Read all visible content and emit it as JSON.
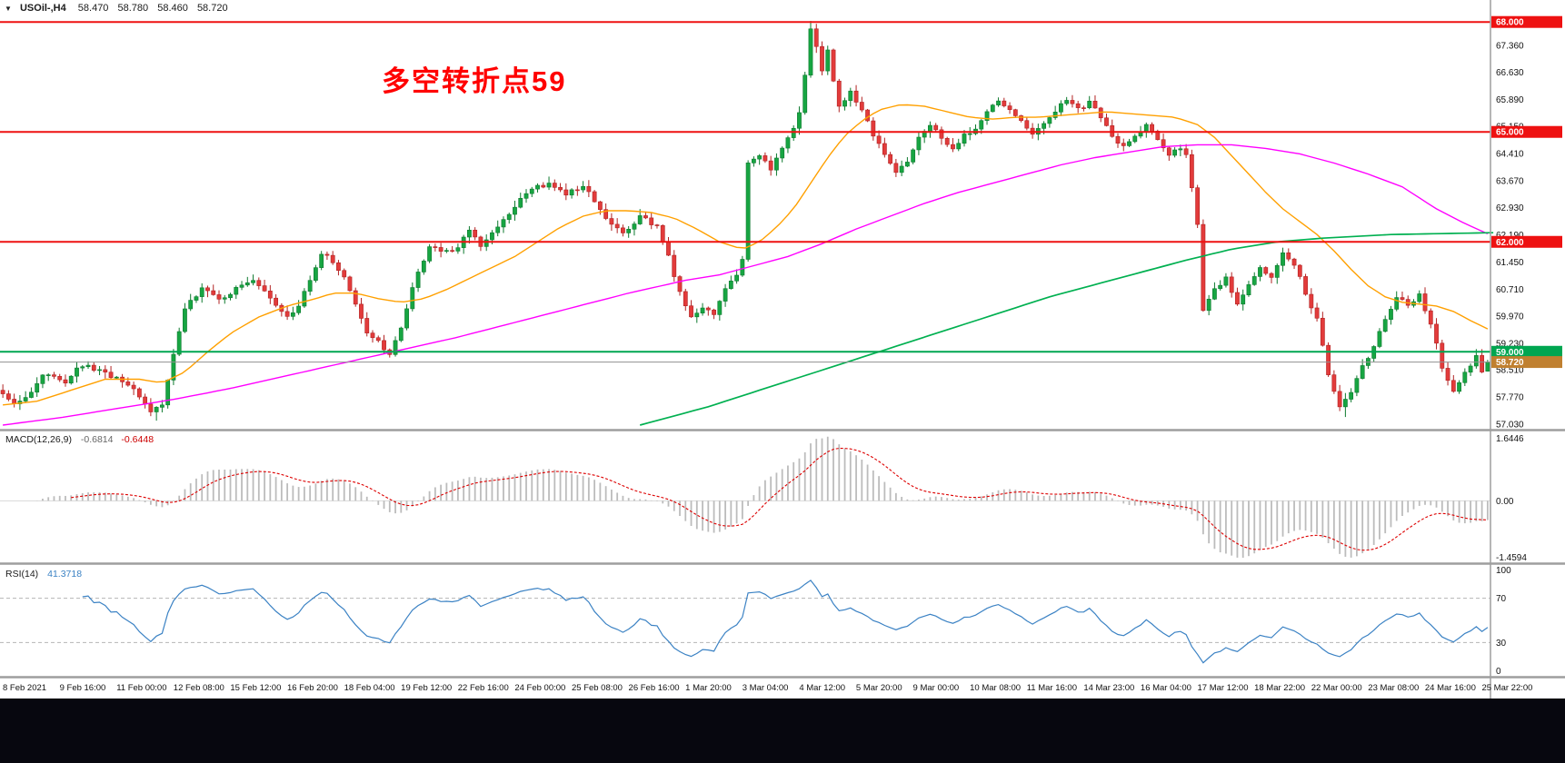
{
  "header": {
    "arrow": "▼",
    "symbol_period": "USOil-,H4",
    "open": "58.470",
    "high": "58.780",
    "low": "58.460",
    "close": "58.720"
  },
  "annotation": {
    "text": "多空转折点59"
  },
  "macd_panel": {
    "name": "MACD(12,26,9)",
    "value1": "-0.6814",
    "value2": "-0.6448",
    "axis_top": "1.6446",
    "axis_zero": "0.00",
    "axis_bottom": "-1.4594"
  },
  "rsi_panel": {
    "name": "RSI(14)",
    "value": "41.3718",
    "axis_labels": [
      "100",
      "70",
      "30",
      "0"
    ],
    "upper_level": 70,
    "lower_level": 30
  },
  "price_axis": {
    "ticks": [
      "67.360",
      "66.630",
      "65.890",
      "65.150",
      "64.410",
      "63.670",
      "62.930",
      "62.190",
      "61.450",
      "60.710",
      "59.970",
      "59.230",
      "58.510",
      "57.770",
      "57.030"
    ]
  },
  "time_axis": {
    "labels": [
      "8 Feb 2021",
      "9 Feb 16:00",
      "11 Feb 00:00",
      "12 Feb 08:00",
      "15 Feb 12:00",
      "16 Feb 20:00",
      "18 Feb 04:00",
      "19 Feb 12:00",
      "22 Feb 16:00",
      "24 Feb 00:00",
      "25 Feb 08:00",
      "26 Feb 16:00",
      "1 Mar 20:00",
      "3 Mar 04:00",
      "4 Mar 12:00",
      "5 Mar 20:00",
      "9 Mar 00:00",
      "10 Mar 08:00",
      "11 Mar 16:00",
      "14 Mar 23:00",
      "16 Mar 04:00",
      "17 Mar 12:00",
      "18 Mar 22:00",
      "22 Mar 00:00",
      "23 Mar 08:00",
      "24 Mar 16:00",
      "25 Mar 22:00"
    ],
    "bars_per_label": 10
  },
  "colors": {
    "bull": "#17a542",
    "bull_stroke": "#0d7a2e",
    "bear": "#e23b3b",
    "bear_stroke": "#b22222",
    "level_red": "#ee1111",
    "level_green": "#00a651",
    "current_line": "#909090",
    "current_badge": "#c08030",
    "macd_hist": "#bcbcbc",
    "macd_signal": "#dd0000",
    "rsi_line": "#3b82c4",
    "separator": "#9e9e9e",
    "axis_text": "#111111",
    "annotation": "#ff0000"
  },
  "chart_data": {
    "type": "candlestick",
    "symbol": "USOil-",
    "timeframe": "H4",
    "bars": 262,
    "visible_price_range": [
      56.9,
      68.6
    ],
    "last_bar": {
      "open": 58.47,
      "high": 58.78,
      "low": 58.46,
      "close": 58.72
    },
    "forced_extremes": [
      {
        "i": 27,
        "low": 57.12
      },
      {
        "i": 142,
        "high": 68.03
      },
      {
        "i": 143,
        "high": 67.95
      },
      {
        "i": 236,
        "low": 57.22
      }
    ],
    "horizontal_levels": [
      {
        "price": 68.0,
        "label": "68.000",
        "color": "#ee1111",
        "badge": "#ee1111",
        "width": 2
      },
      {
        "price": 65.0,
        "label": "65.000",
        "color": "#ee1111",
        "badge": "#ee1111",
        "width": 2
      },
      {
        "price": 62.0,
        "label": "62.000",
        "color": "#ee1111",
        "badge": "#ee1111",
        "width": 2
      },
      {
        "price": 59.0,
        "label": "59.000",
        "color": "#00a651",
        "badge": "#00a651",
        "width": 2
      },
      {
        "price": 58.72,
        "label": "58.720",
        "color": "#909090",
        "badge": "#c08030",
        "width": 1
      }
    ],
    "price_path": [
      [
        0,
        57.95
      ],
      [
        3,
        57.55
      ],
      [
        5,
        57.75
      ],
      [
        8,
        58.35
      ],
      [
        12,
        58.2
      ],
      [
        15,
        58.65
      ],
      [
        18,
        58.5
      ],
      [
        21,
        58.25
      ],
      [
        24,
        57.95
      ],
      [
        27,
        57.3
      ],
      [
        29,
        57.6
      ],
      [
        31,
        58.9
      ],
      [
        33,
        60.15
      ],
      [
        36,
        60.75
      ],
      [
        39,
        60.4
      ],
      [
        42,
        60.7
      ],
      [
        45,
        61.0
      ],
      [
        48,
        60.45
      ],
      [
        51,
        59.95
      ],
      [
        53,
        60.2
      ],
      [
        55,
        61.0
      ],
      [
        57,
        61.7
      ],
      [
        59,
        61.45
      ],
      [
        61,
        61.1
      ],
      [
        63,
        60.3
      ],
      [
        65,
        59.55
      ],
      [
        67,
        59.25
      ],
      [
        69,
        58.95
      ],
      [
        71,
        59.6
      ],
      [
        73,
        60.8
      ],
      [
        76,
        61.9
      ],
      [
        78,
        61.7
      ],
      [
        81,
        61.85
      ],
      [
        83,
        62.3
      ],
      [
        85,
        61.9
      ],
      [
        88,
        62.4
      ],
      [
        91,
        63.0
      ],
      [
        94,
        63.45
      ],
      [
        97,
        63.6
      ],
      [
        100,
        63.3
      ],
      [
        103,
        63.55
      ],
      [
        105,
        63.1
      ],
      [
        107,
        62.6
      ],
      [
        110,
        62.2
      ],
      [
        113,
        62.7
      ],
      [
        116,
        62.4
      ],
      [
        118,
        61.6
      ],
      [
        120,
        60.6
      ],
      [
        122,
        59.95
      ],
      [
        124,
        60.25
      ],
      [
        126,
        60.0
      ],
      [
        128,
        60.7
      ],
      [
        130,
        61.1
      ],
      [
        131,
        61.5
      ],
      [
        132,
        64.2
      ],
      [
        134,
        64.4
      ],
      [
        136,
        63.95
      ],
      [
        138,
        64.6
      ],
      [
        140,
        65.1
      ],
      [
        141,
        65.5
      ],
      [
        142,
        66.6
      ],
      [
        143,
        67.8
      ],
      [
        144,
        67.3
      ],
      [
        145,
        66.7
      ],
      [
        146,
        67.2
      ],
      [
        147,
        66.4
      ],
      [
        148,
        65.7
      ],
      [
        150,
        66.1
      ],
      [
        152,
        65.6
      ],
      [
        154,
        64.9
      ],
      [
        156,
        64.4
      ],
      [
        158,
        63.9
      ],
      [
        160,
        64.2
      ],
      [
        162,
        64.9
      ],
      [
        164,
        65.2
      ],
      [
        166,
        64.8
      ],
      [
        168,
        64.5
      ],
      [
        170,
        64.9
      ],
      [
        172,
        65.1
      ],
      [
        174,
        65.6
      ],
      [
        176,
        65.9
      ],
      [
        178,
        65.6
      ],
      [
        180,
        65.3
      ],
      [
        182,
        64.9
      ],
      [
        184,
        65.2
      ],
      [
        186,
        65.6
      ],
      [
        188,
        65.9
      ],
      [
        190,
        65.6
      ],
      [
        192,
        65.8
      ],
      [
        194,
        65.4
      ],
      [
        196,
        64.9
      ],
      [
        198,
        64.6
      ],
      [
        200,
        64.9
      ],
      [
        202,
        65.2
      ],
      [
        204,
        64.8
      ],
      [
        206,
        64.4
      ],
      [
        208,
        64.6
      ],
      [
        209,
        64.4
      ],
      [
        211,
        62.5
      ],
      [
        212,
        60.1
      ],
      [
        214,
        60.7
      ],
      [
        216,
        61.0
      ],
      [
        218,
        60.3
      ],
      [
        220,
        60.8
      ],
      [
        222,
        61.3
      ],
      [
        224,
        61.0
      ],
      [
        226,
        61.7
      ],
      [
        228,
        61.4
      ],
      [
        230,
        60.6
      ],
      [
        232,
        59.9
      ],
      [
        234,
        58.4
      ],
      [
        236,
        57.45
      ],
      [
        238,
        57.9
      ],
      [
        240,
        58.6
      ],
      [
        242,
        59.1
      ],
      [
        244,
        59.9
      ],
      [
        246,
        60.5
      ],
      [
        248,
        60.3
      ],
      [
        250,
        60.55
      ],
      [
        252,
        59.8
      ],
      [
        254,
        58.6
      ],
      [
        256,
        57.95
      ],
      [
        258,
        58.4
      ],
      [
        260,
        58.85
      ],
      [
        261,
        58.47
      ],
      [
        262,
        58.72
      ]
    ],
    "moving_averages": [
      {
        "name": "ma-fast",
        "color": "#ffa000",
        "width": 1.4,
        "points": [
          [
            0,
            57.55
          ],
          [
            6,
            57.65
          ],
          [
            12,
            57.95
          ],
          [
            18,
            58.25
          ],
          [
            24,
            58.25
          ],
          [
            28,
            58.15
          ],
          [
            32,
            58.45
          ],
          [
            36,
            59.0
          ],
          [
            40,
            59.5
          ],
          [
            45,
            59.95
          ],
          [
            50,
            60.25
          ],
          [
            55,
            60.45
          ],
          [
            58,
            60.6
          ],
          [
            62,
            60.6
          ],
          [
            66,
            60.45
          ],
          [
            70,
            60.35
          ],
          [
            74,
            60.45
          ],
          [
            78,
            60.7
          ],
          [
            82,
            61.0
          ],
          [
            86,
            61.3
          ],
          [
            90,
            61.6
          ],
          [
            94,
            62.0
          ],
          [
            98,
            62.4
          ],
          [
            102,
            62.7
          ],
          [
            106,
            62.85
          ],
          [
            110,
            62.85
          ],
          [
            114,
            62.8
          ],
          [
            118,
            62.65
          ],
          [
            122,
            62.35
          ],
          [
            126,
            62.0
          ],
          [
            130,
            61.8
          ],
          [
            133,
            62.0
          ],
          [
            136,
            62.4
          ],
          [
            139,
            62.9
          ],
          [
            142,
            63.6
          ],
          [
            145,
            64.3
          ],
          [
            148,
            64.9
          ],
          [
            151,
            65.3
          ],
          [
            154,
            65.6
          ],
          [
            158,
            65.75
          ],
          [
            162,
            65.7
          ],
          [
            166,
            65.55
          ],
          [
            170,
            65.4
          ],
          [
            174,
            65.35
          ],
          [
            178,
            65.4
          ],
          [
            182,
            65.4
          ],
          [
            186,
            65.45
          ],
          [
            190,
            65.5
          ],
          [
            194,
            65.55
          ],
          [
            198,
            65.5
          ],
          [
            202,
            65.45
          ],
          [
            206,
            65.4
          ],
          [
            210,
            65.2
          ],
          [
            213,
            64.85
          ],
          [
            216,
            64.35
          ],
          [
            219,
            63.85
          ],
          [
            222,
            63.35
          ],
          [
            225,
            62.9
          ],
          [
            228,
            62.55
          ],
          [
            231,
            62.2
          ],
          [
            234,
            61.75
          ],
          [
            237,
            61.25
          ],
          [
            240,
            60.8
          ],
          [
            243,
            60.5
          ],
          [
            246,
            60.35
          ],
          [
            249,
            60.3
          ],
          [
            252,
            60.25
          ],
          [
            255,
            60.1
          ],
          [
            258,
            59.85
          ],
          [
            262,
            59.55
          ]
        ]
      },
      {
        "name": "ma-mid",
        "color": "#ff00ff",
        "width": 1.4,
        "points": [
          [
            0,
            57.0
          ],
          [
            10,
            57.2
          ],
          [
            20,
            57.45
          ],
          [
            30,
            57.7
          ],
          [
            40,
            58.0
          ],
          [
            50,
            58.35
          ],
          [
            60,
            58.7
          ],
          [
            70,
            59.05
          ],
          [
            80,
            59.4
          ],
          [
            90,
            59.8
          ],
          [
            100,
            60.2
          ],
          [
            110,
            60.6
          ],
          [
            120,
            60.95
          ],
          [
            126,
            61.1
          ],
          [
            132,
            61.35
          ],
          [
            138,
            61.6
          ],
          [
            144,
            61.95
          ],
          [
            150,
            62.35
          ],
          [
            156,
            62.7
          ],
          [
            162,
            63.05
          ],
          [
            168,
            63.35
          ],
          [
            174,
            63.6
          ],
          [
            180,
            63.85
          ],
          [
            186,
            64.1
          ],
          [
            192,
            64.3
          ],
          [
            198,
            64.45
          ],
          [
            204,
            64.6
          ],
          [
            210,
            64.65
          ],
          [
            216,
            64.65
          ],
          [
            222,
            64.55
          ],
          [
            228,
            64.4
          ],
          [
            234,
            64.15
          ],
          [
            240,
            63.85
          ],
          [
            246,
            63.5
          ],
          [
            252,
            62.9
          ],
          [
            257,
            62.5
          ],
          [
            262,
            62.15
          ]
        ]
      },
      {
        "name": "ma-slow",
        "color": "#00b050",
        "width": 1.7,
        "points": [
          [
            112,
            57.0
          ],
          [
            124,
            57.5
          ],
          [
            136,
            58.1
          ],
          [
            148,
            58.7
          ],
          [
            160,
            59.3
          ],
          [
            172,
            59.9
          ],
          [
            184,
            60.5
          ],
          [
            196,
            61.0
          ],
          [
            208,
            61.5
          ],
          [
            216,
            61.8
          ],
          [
            224,
            62.0
          ],
          [
            232,
            62.1
          ],
          [
            244,
            62.2
          ],
          [
            262,
            62.25
          ]
        ]
      }
    ],
    "indicators": {
      "macd": {
        "fast": 12,
        "slow": 26,
        "signal": 9,
        "last_macd": -0.6814,
        "last_signal": -0.6448,
        "axis_range": [
          -1.4594,
          1.6446
        ]
      },
      "rsi": {
        "period": 14,
        "last": 41.3718,
        "range": [
          0,
          100
        ],
        "levels": [
          70,
          30
        ]
      }
    }
  }
}
